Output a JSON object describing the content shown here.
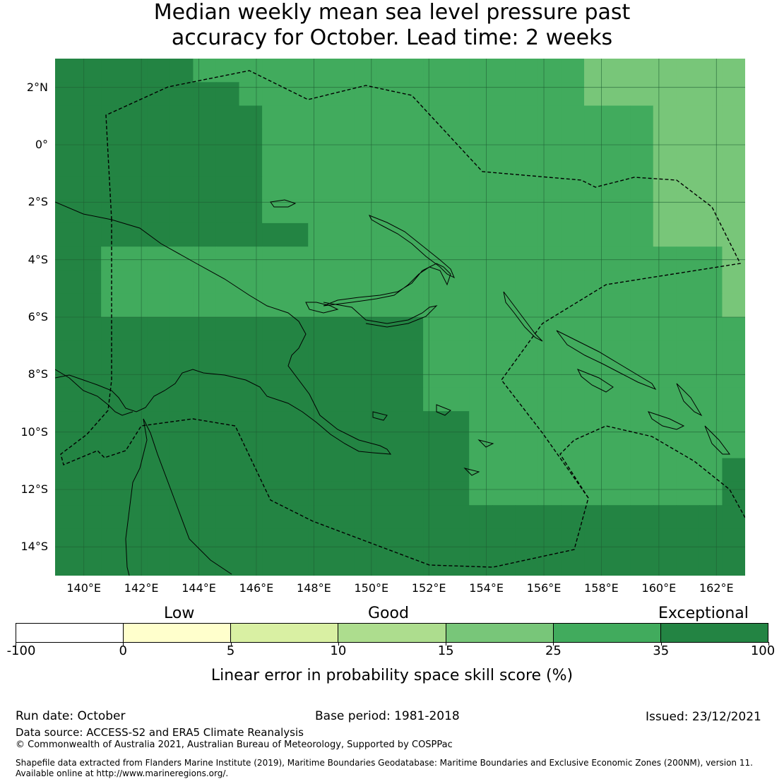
{
  "title": {
    "line1": "Median weekly mean sea level pressure past",
    "line2": "accuracy for October. Lead time: 2 weeks"
  },
  "map": {
    "lat_labels": [
      "2°N",
      "0°",
      "2°S",
      "4°S",
      "6°S",
      "8°S",
      "10°S",
      "12°S",
      "14°S"
    ],
    "lon_labels": [
      "140°E",
      "142°E",
      "144°E",
      "146°E",
      "148°E",
      "150°E",
      "152°E",
      "154°E",
      "156°E",
      "158°E",
      "160°E",
      "162°E"
    ],
    "lon_range": [
      139,
      163
    ],
    "lat_range": [
      -15,
      3
    ],
    "grid_color": "#1e5e33",
    "coastline_color": "#000000",
    "boundary_style": "dashed"
  },
  "legend": {
    "categories": [
      "Low",
      "Good",
      "Exceptional"
    ],
    "ticks": [
      "-100",
      "0",
      "5",
      "10",
      "15",
      "25",
      "35",
      "100"
    ],
    "colors": [
      "#ffffff",
      "#ffffcc",
      "#d9f0a3",
      "#addd8e",
      "#78c679",
      "#41ab5d",
      "#238443"
    ],
    "label": "Linear error in probability space skill score (%)"
  },
  "footer": {
    "run_date": "Run date: October",
    "base_period": "Base period: 1981-2018",
    "issued": "Issued: 23/12/2021",
    "data_source": "Data source: ACCESS-S2 and ERA5 Climate Reanalysis",
    "copyright": "© Commonwealth of Australia 2021, Australian Bureau of Meteorology, Supported by COSPPac",
    "shapefile_line1": "Shapefile data extracted from Flanders Marine Institute (2019), Maritime Boundaries Geodatabase: Maritime Boundaries and Exclusive Economic Zones (200NM), version 11.",
    "shapefile_line2": "Available online at http://www.marineregions.org/."
  }
}
